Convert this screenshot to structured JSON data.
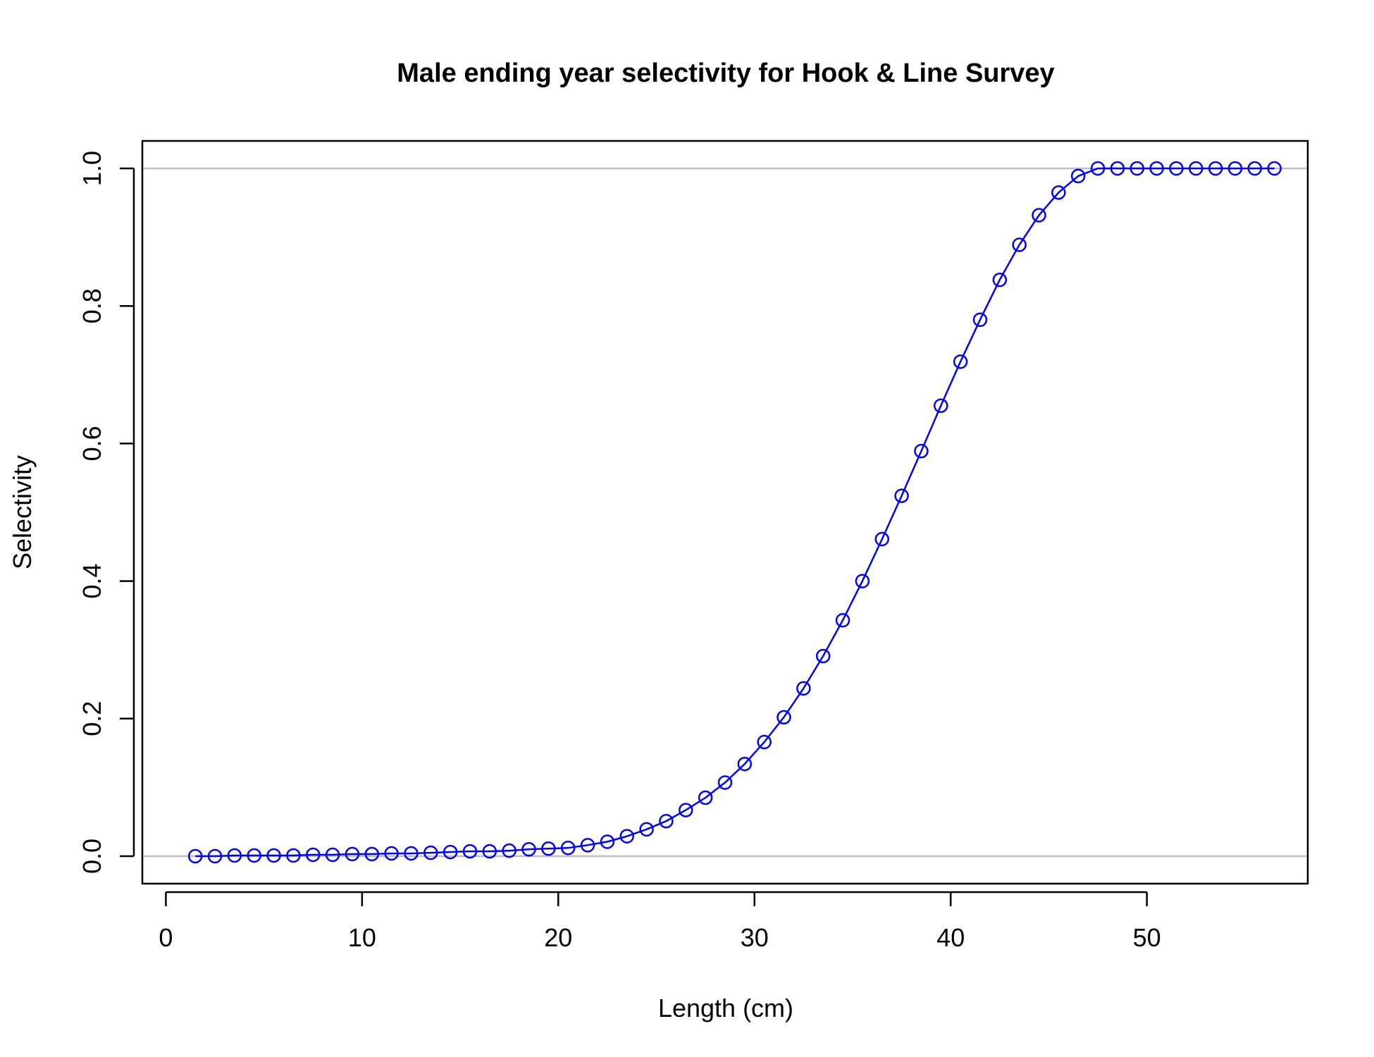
{
  "chart_data": {
    "type": "line",
    "title": "Male ending year selectivity for Hook & Line Survey",
    "xlabel": "Length (cm)",
    "ylabel": "Selectivity",
    "xlim": [
      -1.2,
      58.2
    ],
    "ylim": [
      -0.04,
      1.04
    ],
    "x_ticks": [
      0,
      10,
      20,
      30,
      40,
      50
    ],
    "x_tick_labels": [
      "0",
      "10",
      "20",
      "30",
      "40",
      "50"
    ],
    "y_ticks": [
      0,
      0.2,
      0.4,
      0.6,
      0.8,
      1.0
    ],
    "y_tick_labels": [
      "0.0",
      "0.2",
      "0.4",
      "0.6",
      "0.8",
      "1.0"
    ],
    "reference_lines": [
      0,
      1
    ],
    "grid": false,
    "series": [
      {
        "color": "#0000ff",
        "reference_line_color": "#bebebe",
        "marker": "open-circle",
        "x": [
          1.5,
          2.5,
          3.5,
          4.5,
          5.5,
          6.5,
          7.5,
          8.5,
          9.5,
          10.5,
          11.5,
          12.5,
          13.5,
          14.5,
          15.5,
          16.5,
          17.5,
          18.5,
          19.5,
          20.5,
          21.5,
          22.5,
          23.5,
          24.5,
          25.5,
          26.5,
          27.5,
          28.5,
          29.5,
          30.5,
          31.5,
          32.5,
          33.5,
          34.5,
          35.5,
          36.5,
          37.5,
          38.5,
          39.5,
          40.5,
          41.5,
          42.5,
          43.5,
          44.5,
          45.5,
          46.5,
          47.5,
          48.5,
          49.5,
          50.5,
          51.5,
          52.5,
          53.5,
          54.5,
          55.5,
          56.5
        ],
        "values": [
          0.0,
          0.0,
          0.001,
          0.001,
          0.001,
          0.001,
          0.002,
          0.002,
          0.003,
          0.003,
          0.004,
          0.004,
          0.005,
          0.006,
          0.007,
          0.007,
          0.008,
          0.01,
          0.011,
          0.012,
          0.016,
          0.021,
          0.029,
          0.039,
          0.051,
          0.067,
          0.085,
          0.107,
          0.134,
          0.166,
          0.202,
          0.244,
          0.291,
          0.343,
          0.4,
          0.461,
          0.524,
          0.589,
          0.655,
          0.719,
          0.78,
          0.838,
          0.889,
          0.932,
          0.965,
          0.989,
          1.0,
          1.0,
          1.0,
          1.0,
          1.0,
          1.0,
          1.0,
          1.0,
          1.0,
          1.0
        ]
      }
    ]
  }
}
